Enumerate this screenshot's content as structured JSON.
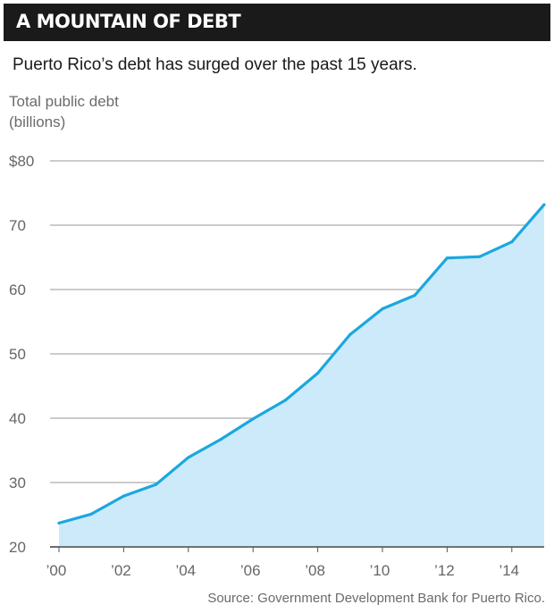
{
  "header": {
    "title": "A MOUNTAIN OF DEBT"
  },
  "subtitle": "Puerto Rico’s debt has surged over the past 15 years.",
  "ylabel_line1": "Total public debt",
  "ylabel_line2": "(billions)",
  "source": "Source: Government Development Bank for Puerto Rico.",
  "colors": {
    "line": "#1ca7e0",
    "fill": "#cdeafa",
    "header_bg": "#1a1a1a"
  },
  "chart_data": {
    "type": "area",
    "title": "A MOUNTAIN OF DEBT",
    "ylabel": "Total public debt (billions)",
    "xlabel": "",
    "x": [
      2000,
      2001,
      2002,
      2003,
      2004,
      2005,
      2006,
      2007,
      2008,
      2009,
      2010,
      2011,
      2012,
      2013,
      2014,
      2015
    ],
    "values": [
      23.7,
      25.1,
      27.9,
      29.7,
      33.9,
      36.7,
      39.9,
      42.8,
      47.0,
      53.0,
      57.0,
      59.1,
      64.9,
      65.1,
      67.4,
      73.2
    ],
    "ylim": [
      20,
      80
    ],
    "yticks": [
      20,
      30,
      40,
      50,
      60,
      70,
      80
    ],
    "ytick_labels": [
      "20",
      "30",
      "40",
      "50",
      "60",
      "70",
      "$80"
    ],
    "xticks": [
      2000,
      2002,
      2004,
      2006,
      2008,
      2010,
      2012,
      2014
    ],
    "xtick_labels": [
      "’00",
      "’02",
      "’04",
      "’06",
      "’08",
      "’10",
      "’12",
      "’14"
    ],
    "grid": true
  }
}
